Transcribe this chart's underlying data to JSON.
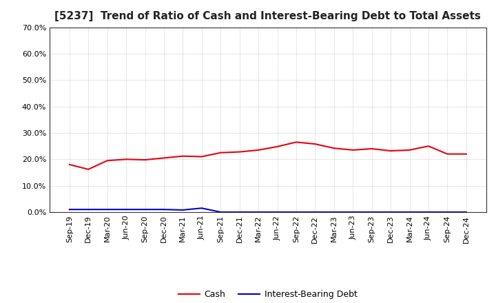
{
  "title": "[5237]  Trend of Ratio of Cash and Interest-Bearing Debt to Total Assets",
  "x_labels": [
    "Sep-19",
    "Dec-19",
    "Mar-20",
    "Jun-20",
    "Sep-20",
    "Dec-20",
    "Mar-21",
    "Jun-21",
    "Sep-21",
    "Dec-21",
    "Mar-22",
    "Jun-22",
    "Sep-22",
    "Dec-22",
    "Mar-23",
    "Jun-23",
    "Sep-23",
    "Dec-23",
    "Mar-24",
    "Jun-24",
    "Sep-24",
    "Dec-24"
  ],
  "cash": [
    18.0,
    16.2,
    19.5,
    20.0,
    19.8,
    20.5,
    21.2,
    21.0,
    22.5,
    22.8,
    23.5,
    24.8,
    26.5,
    25.8,
    24.2,
    23.5,
    24.0,
    23.2,
    23.5,
    25.0,
    22.0,
    22.0
  ],
  "interest_bearing_debt": [
    1.0,
    1.0,
    1.0,
    1.0,
    1.0,
    1.0,
    0.8,
    1.5,
    0.0,
    0.0,
    0.0,
    0.0,
    0.0,
    0.0,
    0.0,
    0.0,
    0.0,
    0.0,
    0.0,
    0.0,
    0.0,
    0.0
  ],
  "cash_color": "#e8000e",
  "debt_color": "#0000cc",
  "ylim": [
    0.0,
    70.0
  ],
  "yticks": [
    0.0,
    10.0,
    20.0,
    30.0,
    40.0,
    50.0,
    60.0,
    70.0
  ],
  "background_color": "#ffffff",
  "grid_color": "#999999",
  "legend_cash": "Cash",
  "legend_debt": "Interest-Bearing Debt",
  "title_fontsize": 11,
  "axis_fontsize": 8,
  "legend_fontsize": 9
}
